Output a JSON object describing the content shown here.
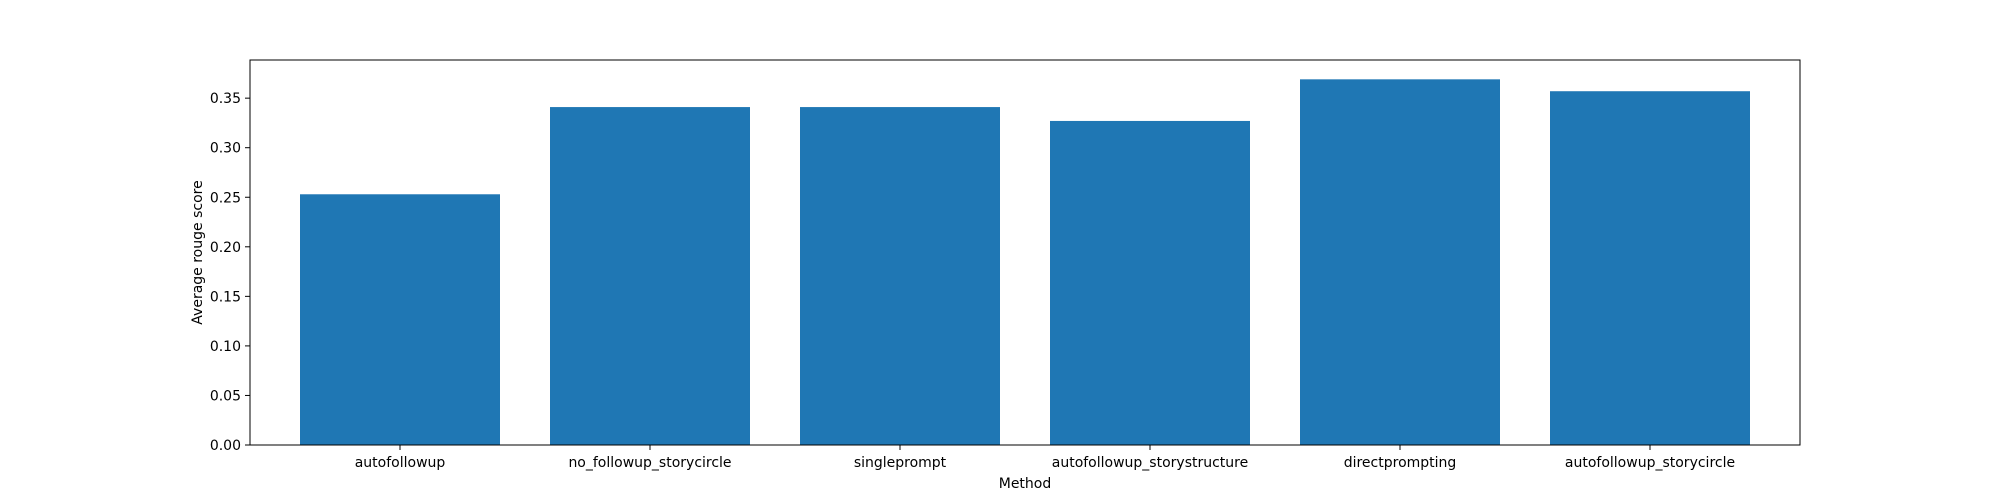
{
  "chart_data": {
    "type": "bar",
    "title": "",
    "xlabel": "Method",
    "ylabel": "Average rouge score",
    "categories": [
      "autofollowup",
      "no_followup_storycircle",
      "singleprompt",
      "autofollowup_storystructure",
      "directprompting",
      "autofollowup_storycircle"
    ],
    "values": [
      0.253,
      0.341,
      0.341,
      0.327,
      0.369,
      0.357
    ],
    "ylim": [
      0,
      0.3885
    ],
    "yticks": [
      "0.00",
      "0.05",
      "0.10",
      "0.15",
      "0.20",
      "0.25",
      "0.30",
      "0.35"
    ],
    "grid": false,
    "legend": "none",
    "colors": {
      "bar": "#1f77b4",
      "axis": "#000000",
      "background": "#ffffff"
    }
  }
}
